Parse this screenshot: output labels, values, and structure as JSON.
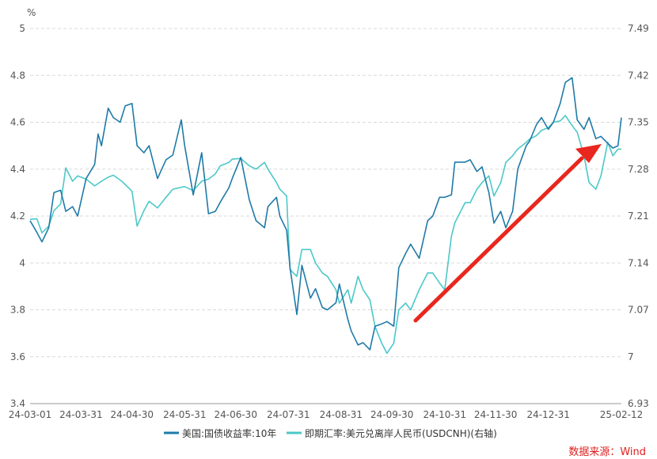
{
  "chart_data": {
    "type": "line",
    "y_unit": "%",
    "ylim": [
      3.4,
      5
    ],
    "y_ticks": [
      "3.4",
      "3.6",
      "3.8",
      "4",
      "4.2",
      "4.4",
      "4.6",
      "4.8",
      "5"
    ],
    "y2lim": [
      6.93,
      7.49
    ],
    "y2_ticks": [
      "6.93",
      "7",
      "7.07",
      "7.14",
      "7.21",
      "7.28",
      "7.35",
      "7.42",
      "7.49"
    ],
    "x_ticks": [
      "24-03-01",
      "24-03-31",
      "24-04-30",
      "24-05-31",
      "24-06-30",
      "24-07-31",
      "24-08-31",
      "24-09-30",
      "24-10-31",
      "24-11-30",
      "24-12-31",
      "25-02-12"
    ],
    "grid": true,
    "legend_position": "bottom",
    "source": "数据来源：Wind",
    "annotation": "red arrow",
    "colors": {
      "series1": "#1f7aa8",
      "series2": "#4cc8c8",
      "arrow": "#e8271e",
      "grid": "#d8d8d8",
      "axis": "#999999"
    },
    "series": [
      {
        "name": "美国:国债收益率:10年",
        "axis": "left",
        "points": [
          [
            "24-03-01",
            4.18
          ],
          [
            "24-03-05",
            4.13
          ],
          [
            "24-03-08",
            4.09
          ],
          [
            "24-03-12",
            4.15
          ],
          [
            "24-03-15",
            4.3
          ],
          [
            "24-03-19",
            4.31
          ],
          [
            "24-03-22",
            4.22
          ],
          [
            "24-03-26",
            4.24
          ],
          [
            "24-03-29",
            4.2
          ],
          [
            "24-04-03",
            4.36
          ],
          [
            "24-04-08",
            4.42
          ],
          [
            "24-04-10",
            4.55
          ],
          [
            "24-04-12",
            4.5
          ],
          [
            "24-04-16",
            4.66
          ],
          [
            "24-04-19",
            4.62
          ],
          [
            "24-04-23",
            4.6
          ],
          [
            "24-04-26",
            4.67
          ],
          [
            "24-04-30",
            4.68
          ],
          [
            "24-05-03",
            4.5
          ],
          [
            "24-05-07",
            4.47
          ],
          [
            "24-05-10",
            4.5
          ],
          [
            "24-05-15",
            4.36
          ],
          [
            "24-05-20",
            4.44
          ],
          [
            "24-05-24",
            4.46
          ],
          [
            "24-05-29",
            4.61
          ],
          [
            "24-05-31",
            4.5
          ],
          [
            "24-06-05",
            4.29
          ],
          [
            "24-06-10",
            4.47
          ],
          [
            "24-06-14",
            4.21
          ],
          [
            "24-06-18",
            4.22
          ],
          [
            "24-06-21",
            4.26
          ],
          [
            "24-06-26",
            4.32
          ],
          [
            "24-06-28",
            4.36
          ],
          [
            "24-07-03",
            4.45
          ],
          [
            "24-07-08",
            4.27
          ],
          [
            "24-07-12",
            4.18
          ],
          [
            "24-07-17",
            4.15
          ],
          [
            "24-07-19",
            4.24
          ],
          [
            "24-07-24",
            4.28
          ],
          [
            "24-07-26",
            4.2
          ],
          [
            "24-07-30",
            4.14
          ],
          [
            "24-08-01",
            3.98
          ],
          [
            "24-08-05",
            3.78
          ],
          [
            "24-08-08",
            3.99
          ],
          [
            "24-08-13",
            3.85
          ],
          [
            "24-08-16",
            3.89
          ],
          [
            "24-08-20",
            3.81
          ],
          [
            "24-08-23",
            3.8
          ],
          [
            "24-08-28",
            3.83
          ],
          [
            "24-08-30",
            3.91
          ],
          [
            "24-09-04",
            3.76
          ],
          [
            "24-09-06",
            3.71
          ],
          [
            "24-09-10",
            3.65
          ],
          [
            "24-09-13",
            3.66
          ],
          [
            "24-09-17",
            3.63
          ],
          [
            "24-09-20",
            3.73
          ],
          [
            "24-09-24",
            3.74
          ],
          [
            "24-09-27",
            3.75
          ],
          [
            "24-10-01",
            3.73
          ],
          [
            "24-10-04",
            3.98
          ],
          [
            "24-10-08",
            4.04
          ],
          [
            "24-10-11",
            4.08
          ],
          [
            "24-10-16",
            4.02
          ],
          [
            "24-10-21",
            4.18
          ],
          [
            "24-10-24",
            4.2
          ],
          [
            "24-10-28",
            4.28
          ],
          [
            "24-10-31",
            4.28
          ],
          [
            "24-11-04",
            4.29
          ],
          [
            "24-11-06",
            4.43
          ],
          [
            "24-11-12",
            4.43
          ],
          [
            "24-11-15",
            4.44
          ],
          [
            "24-11-19",
            4.39
          ],
          [
            "24-11-22",
            4.41
          ],
          [
            "24-11-26",
            4.3
          ],
          [
            "24-11-29",
            4.17
          ],
          [
            "24-12-03",
            4.22
          ],
          [
            "24-12-06",
            4.15
          ],
          [
            "24-12-10",
            4.22
          ],
          [
            "24-12-13",
            4.4
          ],
          [
            "24-12-18",
            4.5
          ],
          [
            "24-12-20",
            4.52
          ],
          [
            "24-12-24",
            4.59
          ],
          [
            "24-12-27",
            4.62
          ],
          [
            "24-12-31",
            4.57
          ],
          [
            "25-01-03",
            4.6
          ],
          [
            "25-01-07",
            4.68
          ],
          [
            "25-01-10",
            4.77
          ],
          [
            "25-01-14",
            4.79
          ],
          [
            "25-01-17",
            4.61
          ],
          [
            "25-01-21",
            4.57
          ],
          [
            "25-01-24",
            4.62
          ],
          [
            "25-01-28",
            4.53
          ],
          [
            "25-01-31",
            4.54
          ],
          [
            "25-02-04",
            4.51
          ],
          [
            "25-02-07",
            4.49
          ],
          [
            "25-02-10",
            4.5
          ],
          [
            "25-02-12",
            4.62
          ]
        ]
      },
      {
        "name": "即期汇率:美元兑离岸人民币(USDCNH)(右轴)",
        "axis": "right",
        "points": [
          [
            "24-03-01",
            7.205
          ],
          [
            "24-03-05",
            7.206
          ],
          [
            "24-03-08",
            7.185
          ],
          [
            "24-03-12",
            7.195
          ],
          [
            "24-03-15",
            7.218
          ],
          [
            "24-03-19",
            7.228
          ],
          [
            "24-03-22",
            7.282
          ],
          [
            "24-03-26",
            7.262
          ],
          [
            "24-03-29",
            7.27
          ],
          [
            "24-04-03",
            7.265
          ],
          [
            "24-04-08",
            7.255
          ],
          [
            "24-04-12",
            7.262
          ],
          [
            "24-04-16",
            7.268
          ],
          [
            "24-04-19",
            7.271
          ],
          [
            "24-04-24",
            7.262
          ],
          [
            "24-04-30",
            7.247
          ],
          [
            "24-05-03",
            7.195
          ],
          [
            "24-05-07",
            7.218
          ],
          [
            "24-05-10",
            7.232
          ],
          [
            "24-05-15",
            7.222
          ],
          [
            "24-05-20",
            7.238
          ],
          [
            "24-05-24",
            7.25
          ],
          [
            "24-05-29",
            7.253
          ],
          [
            "24-05-31",
            7.254
          ],
          [
            "24-06-05",
            7.248
          ],
          [
            "24-06-10",
            7.262
          ],
          [
            "24-06-14",
            7.265
          ],
          [
            "24-06-18",
            7.273
          ],
          [
            "24-06-21",
            7.285
          ],
          [
            "24-06-26",
            7.29
          ],
          [
            "24-06-28",
            7.295
          ],
          [
            "24-07-03",
            7.296
          ],
          [
            "24-07-08",
            7.285
          ],
          [
            "24-07-12",
            7.28
          ],
          [
            "24-07-17",
            7.29
          ],
          [
            "24-07-19",
            7.28
          ],
          [
            "24-07-24",
            7.26
          ],
          [
            "24-07-26",
            7.25
          ],
          [
            "24-07-30",
            7.24
          ],
          [
            "24-08-01",
            7.13
          ],
          [
            "24-08-05",
            7.12
          ],
          [
            "24-08-08",
            7.16
          ],
          [
            "24-08-13",
            7.16
          ],
          [
            "24-08-16",
            7.14
          ],
          [
            "24-08-20",
            7.125
          ],
          [
            "24-08-23",
            7.12
          ],
          [
            "24-08-28",
            7.1
          ],
          [
            "24-08-30",
            7.08
          ],
          [
            "24-09-04",
            7.1
          ],
          [
            "24-09-06",
            7.08
          ],
          [
            "24-09-10",
            7.12
          ],
          [
            "24-09-13",
            7.1
          ],
          [
            "24-09-17",
            7.085
          ],
          [
            "24-09-20",
            7.045
          ],
          [
            "24-09-24",
            7.02
          ],
          [
            "24-09-27",
            7.005
          ],
          [
            "24-10-01",
            7.02
          ],
          [
            "24-10-04",
            7.07
          ],
          [
            "24-10-08",
            7.08
          ],
          [
            "24-10-11",
            7.07
          ],
          [
            "24-10-16",
            7.1
          ],
          [
            "24-10-21",
            7.125
          ],
          [
            "24-10-24",
            7.125
          ],
          [
            "24-10-28",
            7.11
          ],
          [
            "24-10-31",
            7.1
          ],
          [
            "24-11-04",
            7.18
          ],
          [
            "24-11-06",
            7.2
          ],
          [
            "24-11-12",
            7.23
          ],
          [
            "24-11-15",
            7.23
          ],
          [
            "24-11-19",
            7.25
          ],
          [
            "24-11-22",
            7.26
          ],
          [
            "24-11-26",
            7.27
          ],
          [
            "24-11-29",
            7.24
          ],
          [
            "24-12-03",
            7.26
          ],
          [
            "24-12-06",
            7.29
          ],
          [
            "24-12-10",
            7.3
          ],
          [
            "24-12-13",
            7.31
          ],
          [
            "24-12-18",
            7.32
          ],
          [
            "24-12-20",
            7.325
          ],
          [
            "24-12-24",
            7.33
          ],
          [
            "24-12-27",
            7.338
          ],
          [
            "24-12-31",
            7.342
          ],
          [
            "25-01-03",
            7.35
          ],
          [
            "25-01-07",
            7.352
          ],
          [
            "25-01-10",
            7.36
          ],
          [
            "25-01-14",
            7.345
          ],
          [
            "25-01-17",
            7.335
          ],
          [
            "25-01-21",
            7.3
          ],
          [
            "25-01-24",
            7.26
          ],
          [
            "25-01-28",
            7.25
          ],
          [
            "25-01-31",
            7.27
          ],
          [
            "25-02-04",
            7.32
          ],
          [
            "25-02-07",
            7.3
          ],
          [
            "25-02-10",
            7.31
          ],
          [
            "25-02-12",
            7.31
          ]
        ]
      }
    ]
  }
}
